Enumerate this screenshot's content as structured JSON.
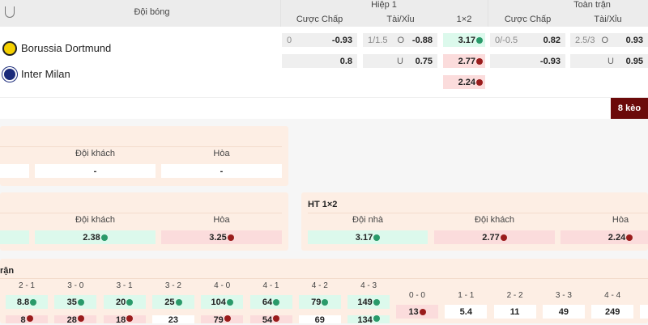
{
  "header": {
    "team_col": "Đội bóng",
    "half1": "Hiệp 1",
    "full": "Toàn trận",
    "handicap": "Cược Chấp",
    "ou": "Tài/Xỉu",
    "x12": "1×2"
  },
  "teams": [
    {
      "name": "Borussia Dortmund"
    },
    {
      "name": "Inter Milan"
    }
  ],
  "h1": {
    "hcap": [
      {
        "line": "0",
        "odd": "-0.93"
      },
      {
        "line": "",
        "odd": "0.8"
      }
    ],
    "ou": [
      {
        "line": "1/1.5",
        "side": "O",
        "odd": "-0.88"
      },
      {
        "line": "",
        "side": "U",
        "odd": "0.75"
      }
    ],
    "x12": [
      {
        "odd": "3.17",
        "dir": "up"
      },
      {
        "odd": "2.77",
        "dir": "down"
      },
      {
        "odd": "2.24",
        "dir": "down"
      }
    ]
  },
  "ft": {
    "hcap": [
      {
        "line": "0/-0.5",
        "odd": "0.82"
      },
      {
        "line": "",
        "odd": "-0.93"
      }
    ],
    "ou": [
      {
        "line": "2.5/3",
        "side": "O",
        "odd": "0.93"
      },
      {
        "line": "",
        "side": "U",
        "odd": "0.95"
      }
    ]
  },
  "more_button": "8 kèo",
  "panel1": {
    "labels": [
      "Đội khách",
      "Hòa"
    ],
    "values": [
      "-",
      "-"
    ]
  },
  "panel2": {
    "labels": [
      "Đội khách",
      "Hòa"
    ],
    "values": [
      "2.38",
      "3.25"
    ]
  },
  "panel3": {
    "title": "HT 1×2",
    "labels": [
      "Đội nhà",
      "Đội khách",
      "Hòa"
    ],
    "values": [
      "3.17",
      "2.77",
      "2.24"
    ]
  },
  "panel4": {
    "title": "rận",
    "scores": [
      "2 - 1",
      "3 - 0",
      "3 - 1",
      "3 - 2",
      "4 - 0",
      "4 - 1",
      "4 - 2",
      "4 - 3"
    ],
    "row1": [
      "8.8",
      "35",
      "20",
      "25",
      "104",
      "64",
      "79",
      "149"
    ],
    "row2": [
      "8",
      "28",
      "18",
      "23",
      "79",
      "54",
      "69",
      "134"
    ],
    "draws": [
      "0 - 0",
      "1 - 1",
      "2 - 2",
      "3 - 3",
      "4 - 4"
    ],
    "draw_odds": [
      "13",
      "5.4",
      "11",
      "49",
      "249"
    ]
  },
  "colors": {
    "up": "#2a9a6a",
    "down": "#9a1c1c",
    "button": "#6b0a0a",
    "panel": "#fdeee4"
  }
}
